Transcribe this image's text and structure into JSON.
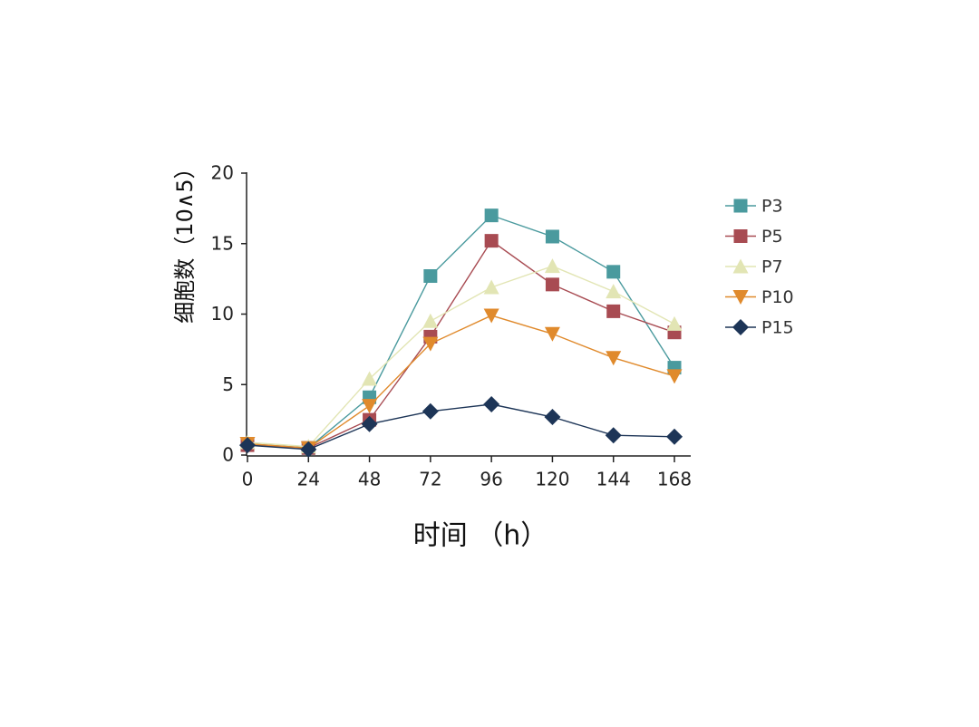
{
  "chart_data": {
    "type": "line",
    "xlabel": "时间 （h）",
    "ylabel": "细胞数（10∧5）",
    "x": [
      0,
      24,
      48,
      72,
      96,
      120,
      144,
      168
    ],
    "x_tick_labels": [
      "0",
      "24",
      "48",
      "72",
      "96",
      "120",
      "144",
      "168"
    ],
    "y_ticks": [
      0,
      5,
      10,
      15,
      20
    ],
    "ylim": [
      0,
      20
    ],
    "grid": false,
    "legend_position": "right",
    "series": [
      {
        "name": "P3",
        "color": "#4a9a9e",
        "marker": "square",
        "values": [
          0.8,
          0.5,
          4.1,
          12.7,
          17.0,
          15.5,
          13.0,
          6.2
        ]
      },
      {
        "name": "P5",
        "color": "#a84b52",
        "marker": "square",
        "values": [
          0.7,
          0.5,
          2.5,
          8.4,
          15.2,
          12.1,
          10.2,
          8.7
        ]
      },
      {
        "name": "P7",
        "color": "#e2e5b4",
        "marker": "triangle-up",
        "values": [
          0.9,
          0.6,
          5.4,
          9.5,
          11.9,
          13.4,
          11.6,
          9.3
        ]
      },
      {
        "name": "P10",
        "color": "#e08a2c",
        "marker": "triangle-down",
        "values": [
          0.8,
          0.5,
          3.5,
          7.9,
          9.9,
          8.6,
          6.9,
          5.6
        ]
      },
      {
        "name": "P15",
        "color": "#1d3557",
        "marker": "diamond",
        "values": [
          0.7,
          0.4,
          2.2,
          3.1,
          3.6,
          2.7,
          1.4,
          1.3
        ]
      }
    ]
  }
}
